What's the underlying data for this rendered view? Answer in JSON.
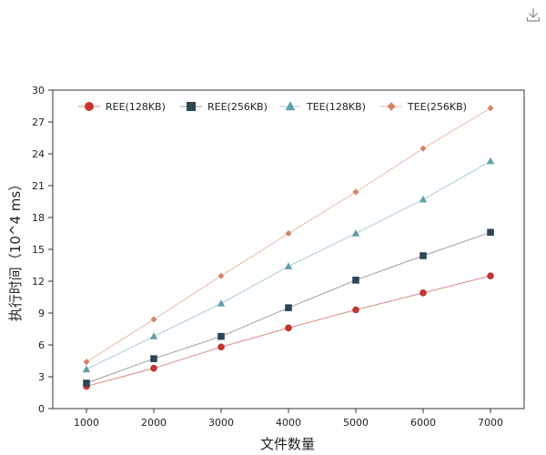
{
  "toolbar": {
    "download_icon": "download-icon"
  },
  "chart_data": {
    "type": "line",
    "title": "",
    "xlabel": "文件数量",
    "ylabel": "执行时间（10^4 ms）",
    "x": [
      1000,
      2000,
      3000,
      4000,
      5000,
      6000,
      7000
    ],
    "x_tick_labels": [
      "1000",
      "2000",
      "3000",
      "4000",
      "5000",
      "6000",
      "7000"
    ],
    "xlim": [
      500,
      7500
    ],
    "ylim": [
      0,
      30
    ],
    "y_ticks": [
      0,
      3,
      6,
      9,
      12,
      15,
      18,
      21,
      24,
      27,
      30
    ],
    "y_tick_labels": [
      "0",
      "3",
      "6",
      "9",
      "12",
      "15",
      "18",
      "21",
      "24",
      "27",
      "30"
    ],
    "grid": false,
    "legend_position": "top",
    "series": [
      {
        "name": "REE(128KB)",
        "values": [
          2.1,
          3.8,
          5.8,
          7.6,
          9.3,
          10.9,
          12.5
        ],
        "marker": "circle",
        "marker_color": "#c23531",
        "line_color": "#d98a86"
      },
      {
        "name": "REE(256KB)",
        "values": [
          2.4,
          4.7,
          6.8,
          9.5,
          12.1,
          14.4,
          16.6
        ],
        "marker": "square",
        "marker_color": "#2f4554",
        "line_color": "#9a9ea3"
      },
      {
        "name": "TEE(128KB)",
        "values": [
          3.7,
          6.8,
          9.9,
          13.4,
          16.5,
          19.7,
          23.3
        ],
        "marker": "triangle",
        "marker_color": "#61a0a8",
        "line_color": "#a9ced2"
      },
      {
        "name": "TEE(256KB)",
        "values": [
          4.4,
          8.4,
          12.5,
          16.5,
          20.4,
          24.5,
          28.3
        ],
        "marker": "diamond",
        "marker_color": "#d48265",
        "line_color": "#e8b9a5"
      }
    ]
  }
}
